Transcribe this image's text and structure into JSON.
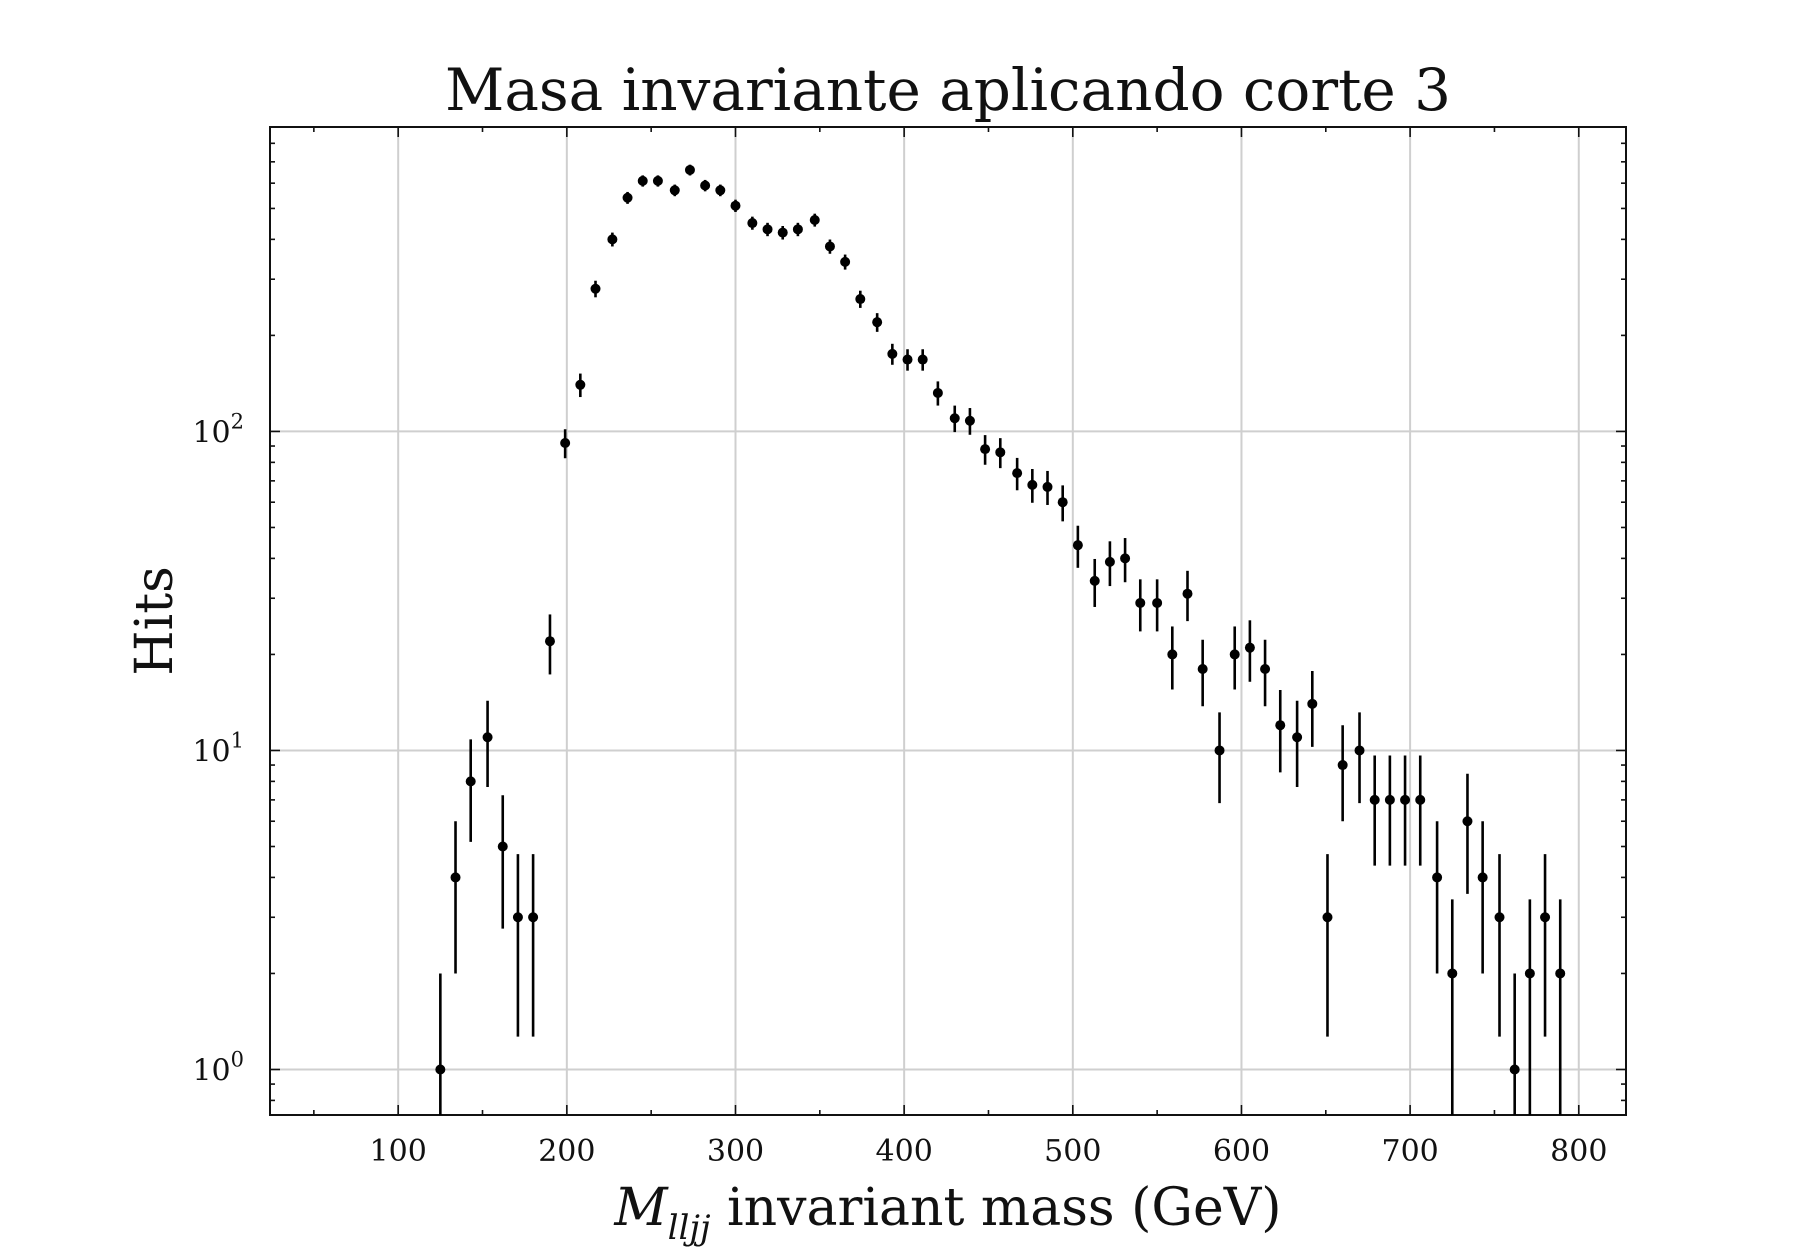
{
  "chart_data": {
    "type": "scatter",
    "title": "Masa invariante aplicando corte 3",
    "xlabel_var": "M",
    "xlabel_sub": "lljj",
    "xlabel_rest": " invariant mass (GeV)",
    "ylabel": "Hits",
    "yscale": "log",
    "xlim": [
      24,
      828
    ],
    "ylim": [
      0.72,
      900
    ],
    "xticks": [
      100,
      200,
      300,
      400,
      500,
      600,
      700,
      800
    ],
    "xtick_labels": [
      "100",
      "200",
      "300",
      "400",
      "500",
      "600",
      "700",
      "800"
    ],
    "yticks": [
      1,
      10,
      100
    ],
    "ytick_base": "10",
    "ytick_exponents": [
      "0",
      "1",
      "2"
    ],
    "grid": true,
    "marker_color": "#000000",
    "errors": "sqrt(N)",
    "series": [
      {
        "x": [
          125,
          134,
          143,
          153,
          162,
          171,
          180,
          190,
          199,
          208,
          217,
          227,
          236,
          245,
          254,
          264,
          273,
          282,
          291,
          300,
          310,
          319,
          328,
          337,
          347,
          356,
          365,
          374,
          384,
          393,
          402,
          411,
          420,
          430,
          439,
          448,
          457,
          467,
          476,
          485,
          494,
          503,
          513,
          522,
          531,
          540,
          550,
          559,
          568,
          577,
          587,
          596,
          605,
          614,
          623,
          633,
          642,
          651,
          660,
          670,
          679,
          688,
          697,
          706,
          716,
          725,
          734,
          743,
          753,
          762,
          771,
          780,
          789
        ],
        "y": [
          1,
          4,
          8,
          11,
          5,
          3,
          3,
          22,
          92,
          140,
          280,
          400,
          540,
          610,
          610,
          570,
          660,
          590,
          570,
          510,
          450,
          430,
          420,
          430,
          460,
          380,
          340,
          260,
          220,
          175,
          168,
          168,
          132,
          110,
          108,
          88,
          86,
          74,
          68,
          67,
          60,
          44,
          34,
          39,
          40,
          29,
          29,
          20,
          31,
          18,
          10,
          20,
          21,
          18,
          12,
          11,
          14,
          3,
          9,
          10,
          7,
          7,
          7,
          7,
          4,
          2,
          6,
          4,
          3,
          1,
          2,
          3,
          2
        ]
      }
    ]
  }
}
